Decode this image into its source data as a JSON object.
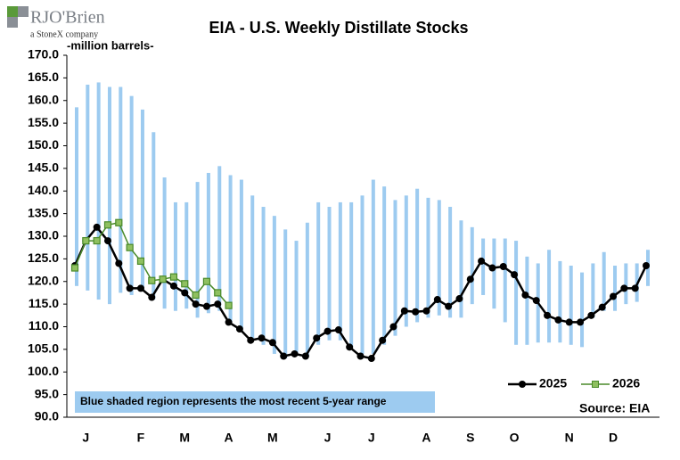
{
  "logo": {
    "name": "RJO'Brien",
    "tagline": "a StoneX company"
  },
  "chart_data": {
    "type": "range-line",
    "title": "EIA - U.S. Weekly Distillate Stocks",
    "y_label": "-million barrels-",
    "annotation": "Blue shaded region represents the most recent 5-year range",
    "source": "Source: EIA",
    "categories": [
      null,
      "J",
      null,
      null,
      null,
      null,
      "F",
      null,
      null,
      null,
      "M",
      null,
      null,
      null,
      "A",
      null,
      null,
      null,
      "M",
      null,
      null,
      null,
      null,
      "J",
      null,
      null,
      null,
      "J",
      null,
      null,
      null,
      null,
      "A",
      null,
      null,
      null,
      "S",
      null,
      null,
      null,
      "O",
      null,
      null,
      null,
      null,
      "N",
      null,
      null,
      null,
      "D",
      null,
      null,
      null
    ],
    "range": {
      "color": "#9dcbf0",
      "low": [
        119,
        118,
        116,
        115,
        117.5,
        117,
        118,
        116,
        114,
        113.5,
        114,
        112,
        113,
        113.5,
        111,
        109.5,
        107,
        106,
        104,
        103,
        104,
        103.5,
        106,
        107,
        107,
        105,
        104,
        104,
        106,
        108,
        110,
        111,
        112,
        112.5,
        112,
        112,
        115,
        117,
        114,
        111,
        106,
        106,
        106.5,
        106.5,
        106.5,
        106,
        105.5,
        112,
        113.5,
        113.5,
        115,
        115.5,
        119
      ],
      "high": [
        158.5,
        163.5,
        164,
        163,
        163,
        161,
        158,
        153,
        143,
        137.5,
        137.5,
        142,
        144,
        145.5,
        143.5,
        142.5,
        139,
        136.5,
        134.5,
        131.5,
        129,
        133,
        137.5,
        136.5,
        137.5,
        137.5,
        139,
        142.5,
        141,
        138,
        139,
        140.5,
        138.5,
        138,
        136.5,
        133.5,
        132,
        129.5,
        129.5,
        129.5,
        129,
        125.5,
        124,
        127,
        124.5,
        123.5,
        122,
        124,
        126.5,
        123.5,
        124,
        124,
        127
      ]
    },
    "series": [
      {
        "name": "2025",
        "color": "#000000",
        "marker_color": "#000000",
        "values": [
          123.5,
          129,
          132,
          129,
          124,
          118.5,
          118.5,
          116.5,
          120.5,
          119,
          117.5,
          115,
          114.5,
          115,
          111,
          109.5,
          107,
          107.5,
          106.5,
          103.5,
          104,
          103.5,
          107.5,
          109,
          109.3,
          105.5,
          103.5,
          103,
          107,
          110,
          113.5,
          113.3,
          113.5,
          116,
          114.5,
          116.2,
          120.5,
          124.5,
          123,
          123.3,
          121.5,
          117,
          115.8,
          112.5,
          111.5,
          111,
          111,
          112.5,
          114.3,
          116.7,
          118.5,
          118.5,
          123.5
        ]
      },
      {
        "name": "2026",
        "color": "#4a8a2a",
        "marker_color": "#8fc060",
        "values": [
          123,
          129,
          129,
          132.5,
          133,
          127.5,
          124.5,
          120.2,
          120.5,
          121,
          119.5,
          117,
          120,
          117.5,
          114.7,
          null,
          null,
          null,
          null,
          null,
          null,
          null,
          null,
          null,
          null,
          null,
          null,
          null,
          null,
          null,
          null,
          null,
          null,
          null,
          null,
          null,
          null,
          null,
          null,
          null,
          null,
          null,
          null,
          null,
          null,
          null,
          null,
          null,
          null,
          null,
          null,
          null,
          null
        ]
      }
    ],
    "ylim": [
      90,
      170
    ],
    "yticks": [
      {
        "value": 90,
        "label": "90.0"
      },
      {
        "value": 95,
        "label": "95.0"
      },
      {
        "value": 100,
        "label": "100.0"
      },
      {
        "value": 105,
        "label": "105.0"
      },
      {
        "value": 110,
        "label": "110.0"
      },
      {
        "value": 115,
        "label": "115.0"
      },
      {
        "value": 120,
        "label": "120.0"
      },
      {
        "value": 125,
        "label": "125.0"
      },
      {
        "value": 130,
        "label": "130.0"
      },
      {
        "value": 135,
        "label": "135.0"
      },
      {
        "value": 140,
        "label": "140.0"
      },
      {
        "value": 145,
        "label": "145.0"
      },
      {
        "value": 150,
        "label": "150.0"
      },
      {
        "value": 155,
        "label": "155.0"
      },
      {
        "value": 160,
        "label": "160.0"
      },
      {
        "value": 165,
        "label": "165.0"
      },
      {
        "value": 170,
        "label": "170.0"
      }
    ],
    "grid": false,
    "legend": "bottom-right"
  }
}
